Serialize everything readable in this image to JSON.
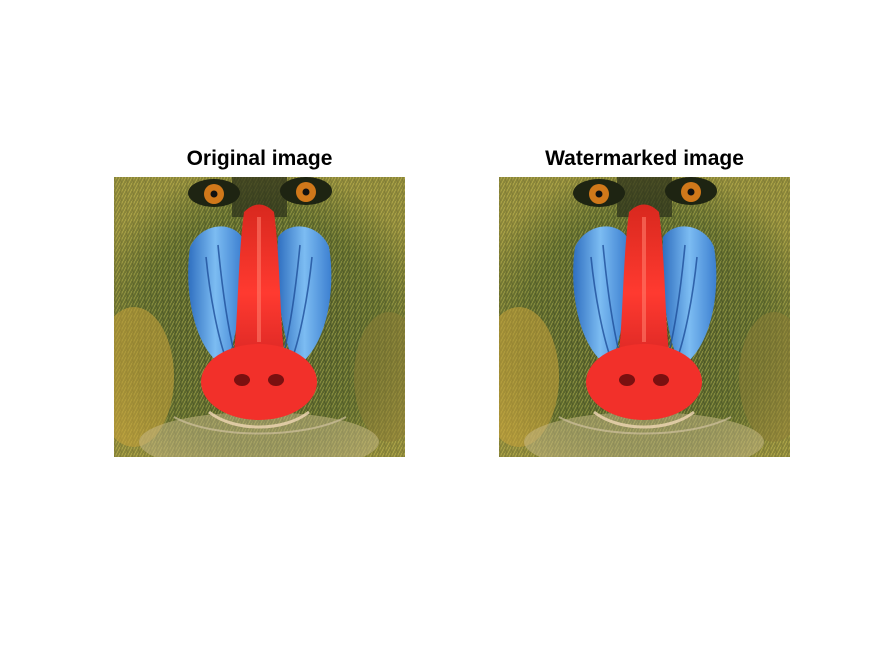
{
  "figure": {
    "panels": [
      {
        "title": "Original image",
        "image": "mandrill-photo"
      },
      {
        "title": "Watermarked image",
        "image": "mandrill-photo"
      }
    ]
  },
  "colors": {
    "background": "#ffffff",
    "fur_dark": "#3b4a22",
    "fur_olive": "#8a8f3a",
    "fur_yellow": "#c9a53a",
    "cheek_blue": "#5fa7e8",
    "nose_red": "#f2302a",
    "eye_orange": "#d0781a"
  }
}
